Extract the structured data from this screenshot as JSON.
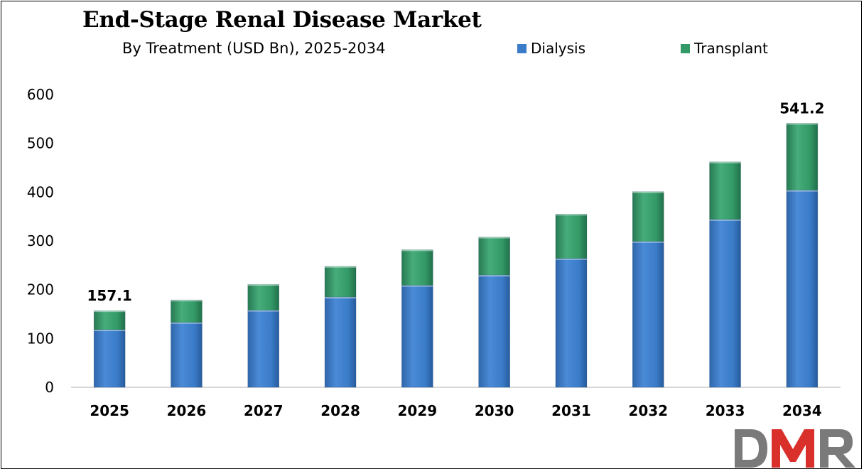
{
  "chart_data": {
    "type": "bar",
    "stacked": true,
    "title": "End-Stage Renal Disease Market",
    "subtitle": "By Treatment (USD Bn), 2025-2034",
    "categories": [
      "2025",
      "2026",
      "2027",
      "2028",
      "2029",
      "2030",
      "2031",
      "2032",
      "2033",
      "2034"
    ],
    "series": [
      {
        "name": "Dialysis",
        "color": "#3a7cc8",
        "values": [
          118,
          133,
          158,
          185,
          209,
          230,
          264,
          299,
          344,
          404
        ]
      },
      {
        "name": "Transplant",
        "color": "#339966",
        "values": [
          39.1,
          46,
          53,
          63,
          73,
          78,
          91,
          102,
          118,
          137.2
        ]
      }
    ],
    "totals_labeled": {
      "2025": "157.1",
      "2034": "541.2"
    },
    "ylim": [
      0,
      600
    ],
    "yticks": [
      0,
      100,
      200,
      300,
      400,
      500,
      600
    ],
    "grid": false,
    "legend_position": "top-right"
  },
  "logo": {
    "text": "DMR"
  }
}
